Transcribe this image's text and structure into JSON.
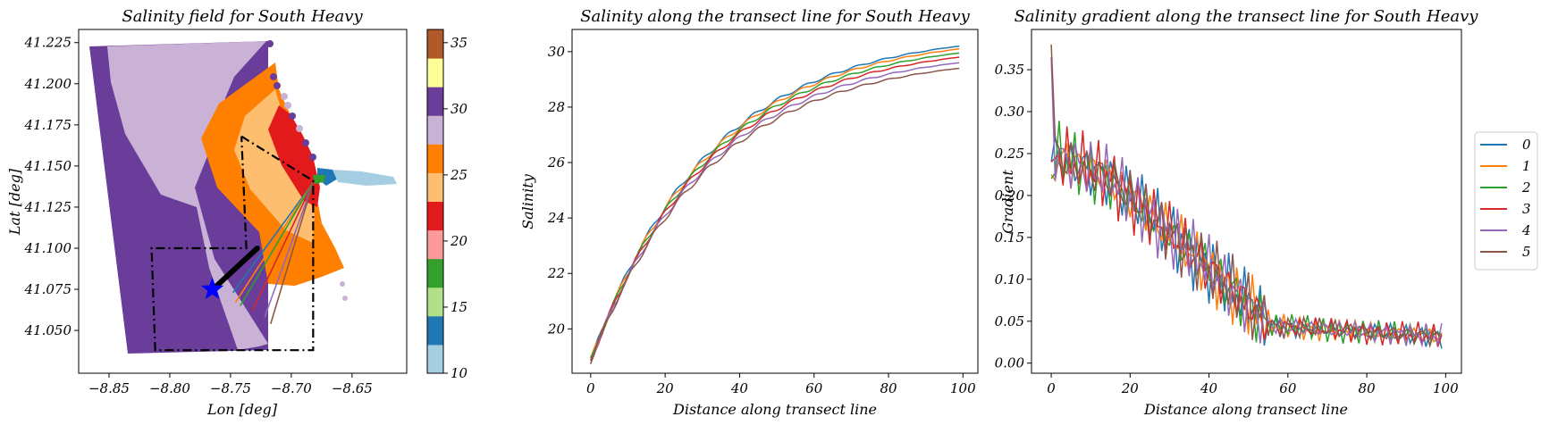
{
  "colors": {
    "palette_paired": [
      "#a6cee3",
      "#1f78b4",
      "#b2df8a",
      "#33a02c",
      "#fb9a99",
      "#e31a1c",
      "#fdbf6f",
      "#ff7f00",
      "#cab2d6",
      "#6a3d9a",
      "#ffff99",
      "#b15928"
    ],
    "tab10": [
      "#1f77b4",
      "#ff7f0e",
      "#2ca02c",
      "#d62728",
      "#9467bd",
      "#8c564b"
    ]
  },
  "chart_data": [
    {
      "type": "map",
      "title": "Salinity field for South Heavy",
      "xlabel": "Lon [deg]",
      "ylabel": "Lat [deg]",
      "xlim": [
        -8.875,
        -8.605
      ],
      "ylim": [
        41.024,
        41.233
      ],
      "xticks": [
        -8.85,
        -8.8,
        -8.75,
        -8.7,
        -8.65
      ],
      "xtick_labels": [
        "−8.85",
        "−8.80",
        "−8.75",
        "−8.70",
        "−8.65"
      ],
      "yticks": [
        41.05,
        41.075,
        41.1,
        41.125,
        41.15,
        41.175,
        41.2,
        41.225
      ],
      "ytick_labels": [
        "41.050",
        "41.075",
        "41.100",
        "41.125",
        "41.150",
        "41.175",
        "41.200",
        "41.225"
      ],
      "colorbar": {
        "ticks": [
          10,
          15,
          20,
          25,
          30,
          35
        ],
        "tick_labels": [
          "10",
          "15",
          "20",
          "25",
          "30",
          "35"
        ],
        "range": [
          10,
          36
        ],
        "levels": 12
      },
      "star_marker": {
        "lon": -8.765,
        "lat": 41.075,
        "color": "#0000ff"
      },
      "transect_origin": {
        "lon": -8.682,
        "lat": 41.14
      },
      "transect_ends": [
        {
          "lon": -8.748,
          "lat": 41.073
        },
        {
          "lon": -8.746,
          "lat": 41.067
        },
        {
          "lon": -8.742,
          "lat": 41.065
        },
        {
          "lon": -8.732,
          "lat": 41.062
        },
        {
          "lon": -8.722,
          "lat": 41.058
        },
        {
          "lon": -8.717,
          "lat": 41.054
        }
      ],
      "dense_line": {
        "from": {
          "lon": -8.766,
          "lat": 41.074
        },
        "to": {
          "lon": -8.728,
          "lat": 41.1
        }
      },
      "dashdot_box": [
        {
          "lon": -8.741,
          "lat": 41.168
        },
        {
          "lon": -8.682,
          "lat": 41.141
        },
        {
          "lon": -8.682,
          "lat": 41.038
        },
        {
          "lon": -8.812,
          "lat": 41.038
        },
        {
          "lon": -8.815,
          "lat": 41.1
        },
        {
          "lon": -8.737,
          "lat": 41.1
        },
        {
          "lon": -8.741,
          "lat": 41.168
        }
      ]
    },
    {
      "type": "line",
      "title": "Salinity along the transect line for South Heavy",
      "xlabel": "Distance along transect line",
      "ylabel": "Salinity",
      "xlim": [
        -5,
        104
      ],
      "ylim": [
        18.4,
        30.8
      ],
      "xticks": [
        0,
        20,
        40,
        60,
        80,
        100
      ],
      "yticks": [
        20,
        22,
        24,
        26,
        28,
        30
      ],
      "x_range": [
        0,
        99
      ],
      "series": [
        {
          "name": "0",
          "start": 18.85,
          "end": 30.2
        },
        {
          "name": "1",
          "start": 18.85,
          "end": 30.1
        },
        {
          "name": "2",
          "start": 18.85,
          "end": 29.95
        },
        {
          "name": "3",
          "start": 18.85,
          "end": 29.8
        },
        {
          "name": "4",
          "start": 18.85,
          "end": 29.6
        },
        {
          "name": "5",
          "start": 18.85,
          "end": 29.4
        }
      ]
    },
    {
      "type": "line",
      "title": "Salinity gradient along the transect line for South Heavy",
      "xlabel": "Distance along transect line",
      "ylabel": "Gradient",
      "xlim": [
        -5,
        104
      ],
      "ylim": [
        -0.012,
        0.398
      ],
      "xticks": [
        0,
        20,
        40,
        60,
        80,
        100
      ],
      "yticks": [
        0.0,
        0.05,
        0.1,
        0.15,
        0.2,
        0.25,
        0.3,
        0.35
      ],
      "ytick_labels": [
        "0.00",
        "0.05",
        "0.10",
        "0.15",
        "0.20",
        "0.25",
        "0.30",
        "0.35"
      ],
      "x_range": [
        0,
        99
      ],
      "series": [
        {
          "name": "0",
          "start": 0.24
        },
        {
          "name": "1",
          "start": 0.225
        },
        {
          "name": "2",
          "start": 0.22
        },
        {
          "name": "3",
          "start": 0.24
        },
        {
          "name": "4",
          "start": 0.365
        },
        {
          "name": "5",
          "start": 0.38
        }
      ],
      "legend": {
        "placement": "right",
        "entries": [
          "0",
          "1",
          "2",
          "3",
          "4",
          "5"
        ]
      }
    }
  ]
}
